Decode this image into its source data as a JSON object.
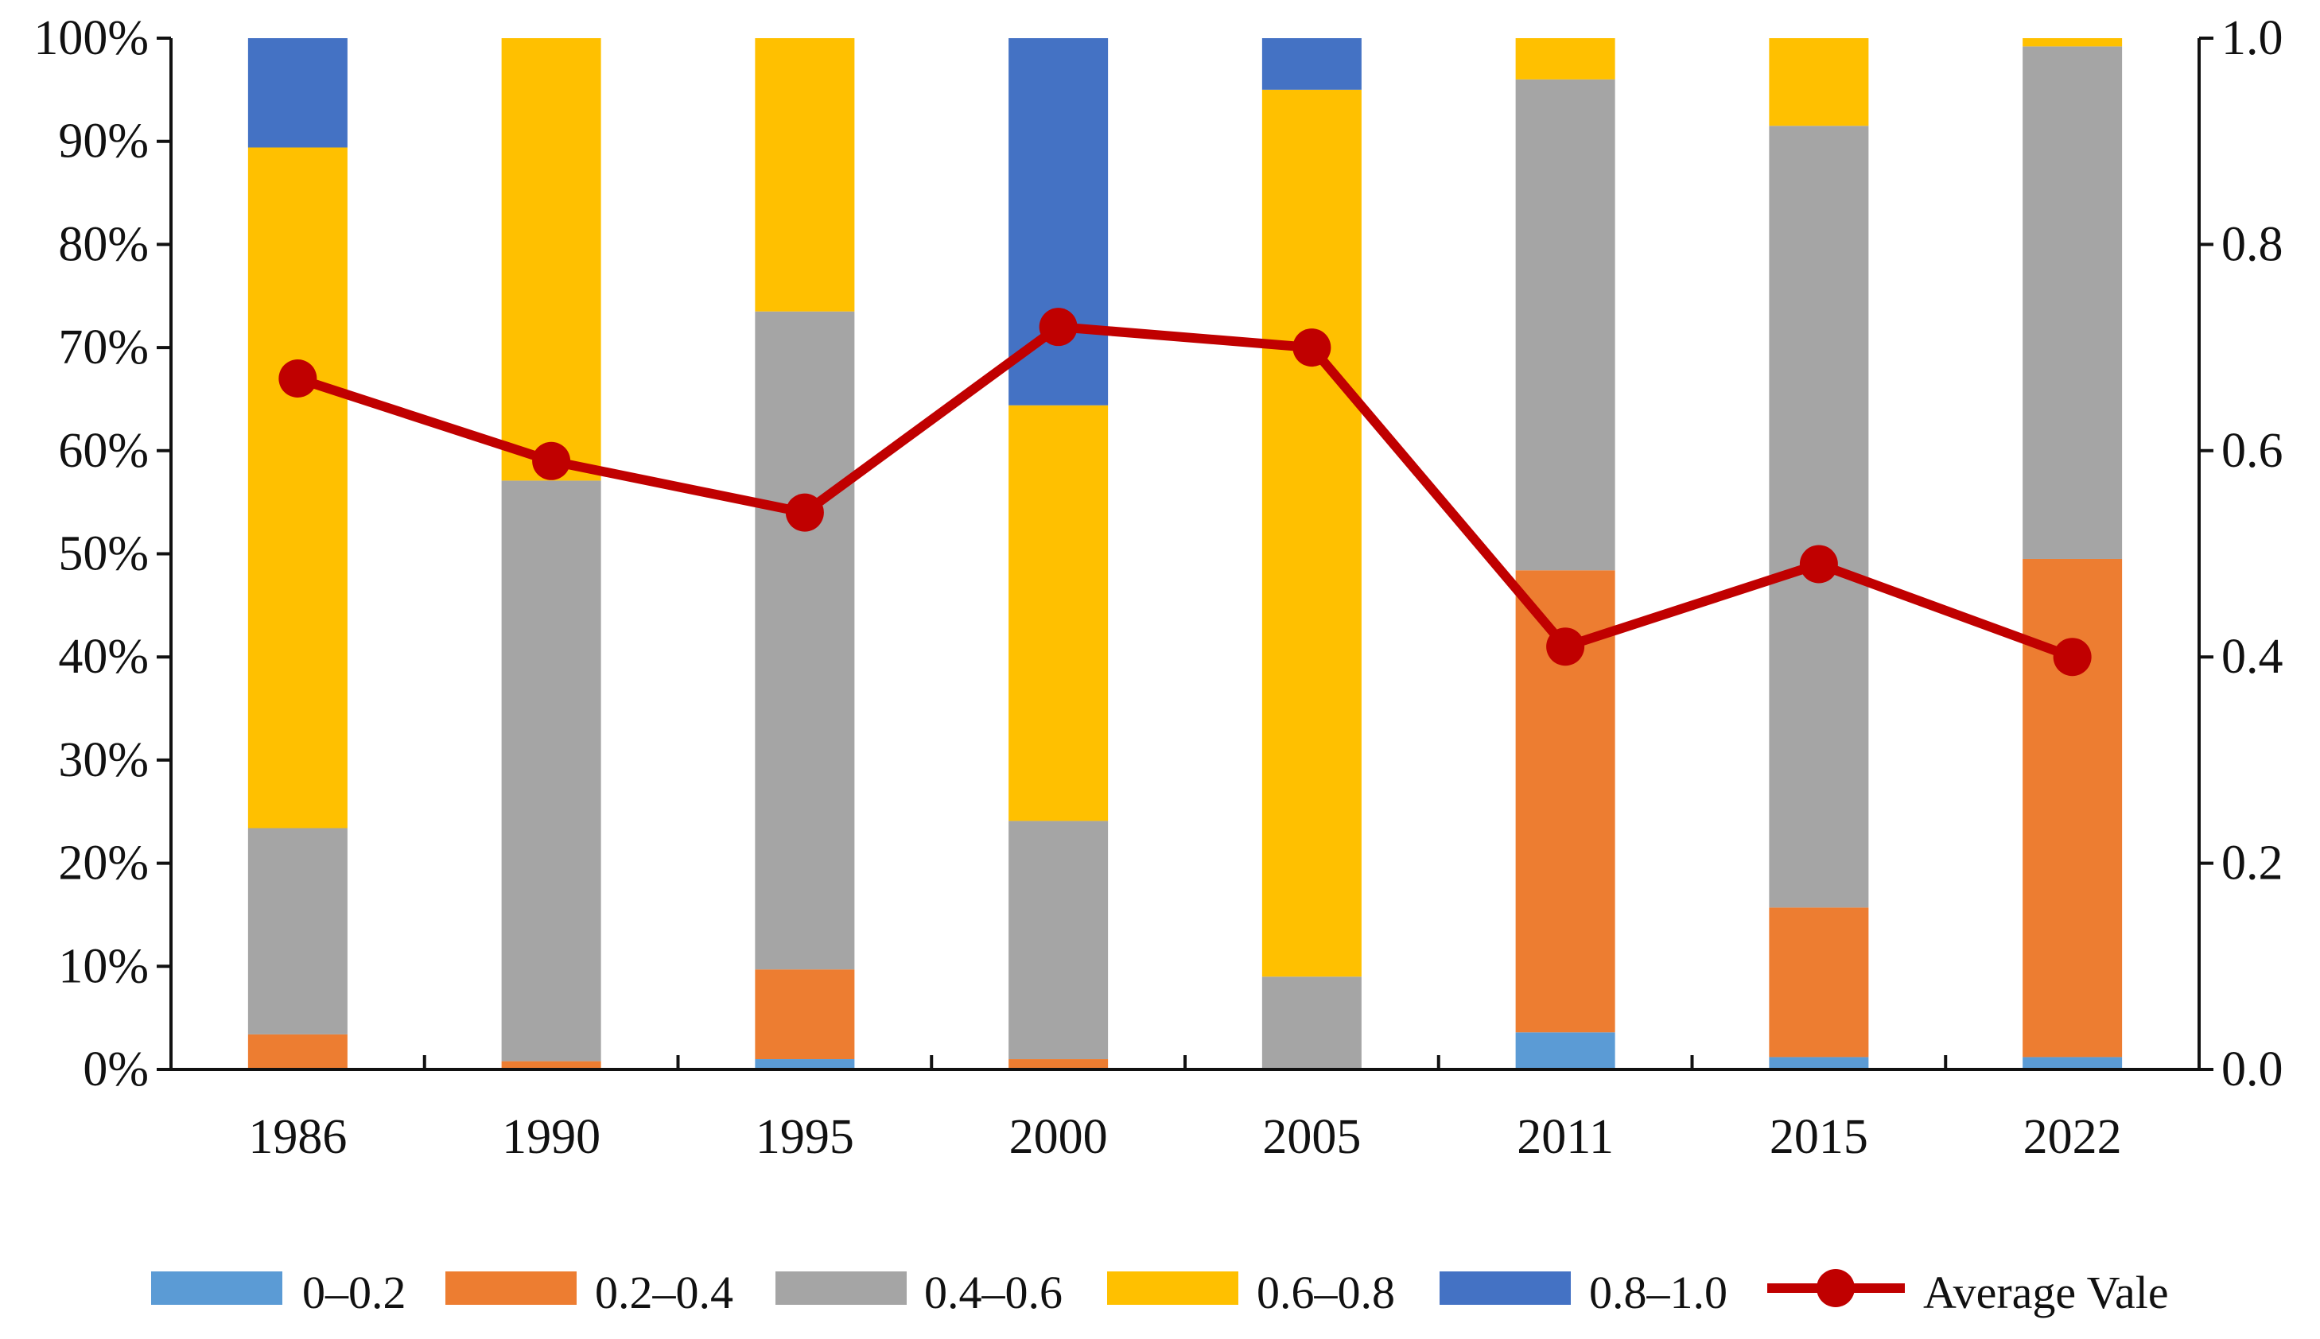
{
  "chart_data": {
    "type": "bar",
    "stacked": true,
    "categories": [
      "1986",
      "1990",
      "1995",
      "2000",
      "2005",
      "2011",
      "2015",
      "2022"
    ],
    "series": [
      {
        "name": "0–0.2",
        "color": "#5B9BD5",
        "values": [
          0.0,
          0.0,
          1.0,
          0.0,
          0.0,
          3.6,
          1.2,
          1.2
        ]
      },
      {
        "name": "0.2–0.4",
        "color": "#ED7D31",
        "values": [
          3.4,
          0.8,
          8.7,
          1.0,
          0.0,
          44.8,
          14.5,
          48.3
        ]
      },
      {
        "name": "0.4–0.6",
        "color": "#A5A5A5",
        "values": [
          20.0,
          56.3,
          63.8,
          23.1,
          9.0,
          47.6,
          75.8,
          49.7
        ]
      },
      {
        "name": "0.6–0.8",
        "color": "#FFC000",
        "values": [
          66.0,
          42.9,
          26.5,
          40.3,
          86.0,
          4.0,
          8.5,
          0.8
        ]
      },
      {
        "name": "0.8–1.0",
        "color": "#4472C4",
        "values": [
          10.6,
          0.0,
          0.0,
          35.6,
          5.0,
          0.0,
          0.0,
          0.0
        ]
      }
    ],
    "line_series": {
      "name": "Average Vale",
      "color": "#C00000",
      "values": [
        0.67,
        0.59,
        0.54,
        0.72,
        0.7,
        0.41,
        0.49,
        0.4
      ]
    },
    "y_left": {
      "ticks": [
        "0%",
        "10%",
        "20%",
        "30%",
        "40%",
        "50%",
        "60%",
        "70%",
        "80%",
        "90%",
        "100%"
      ],
      "ylim": [
        0,
        100
      ]
    },
    "y_right": {
      "ticks": [
        "0.0",
        "0.2",
        "0.4",
        "0.6",
        "0.8",
        "1.0"
      ],
      "ylim": [
        0,
        1
      ]
    },
    "legend_position": "bottom",
    "grid": false
  }
}
